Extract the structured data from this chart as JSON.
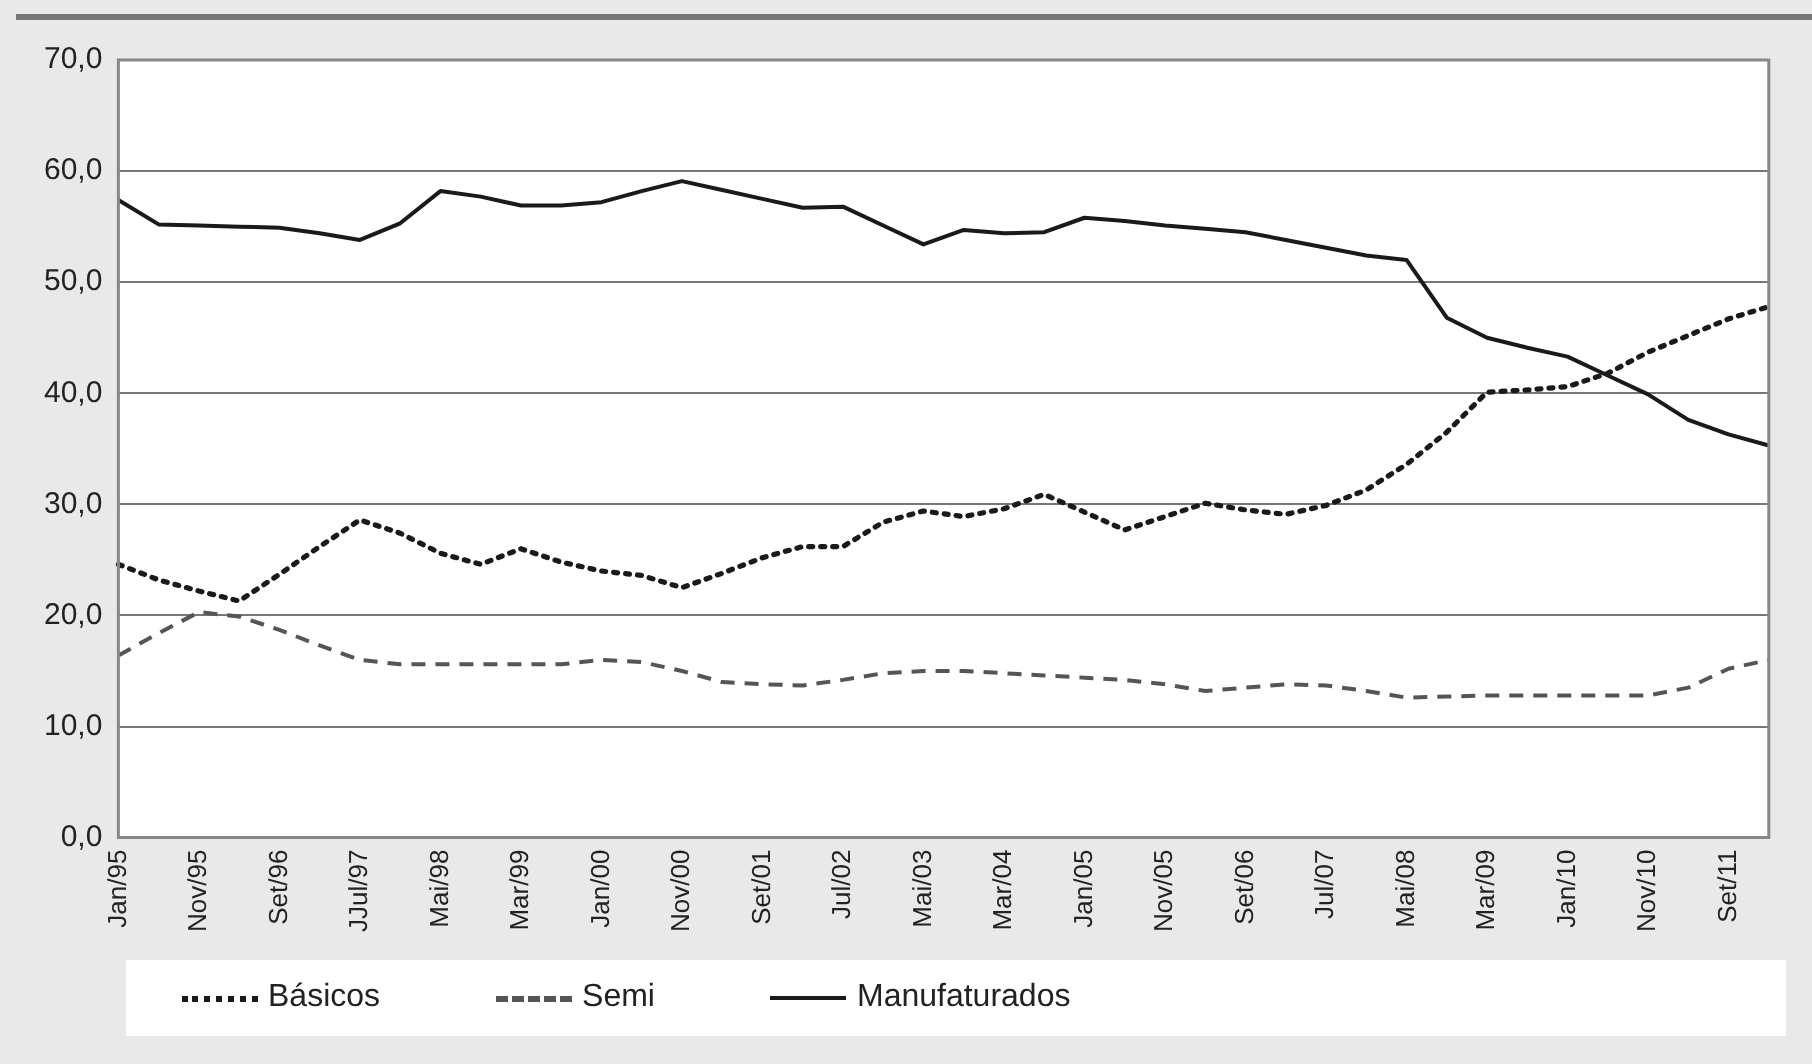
{
  "chart_data": {
    "type": "line",
    "categories": [
      "Jan/95",
      null,
      "Nov/95",
      null,
      "Set/96",
      null,
      "JJul/97",
      null,
      "Mai/98",
      null,
      "Mar/99",
      null,
      "Jan/00",
      null,
      "Nov/00",
      null,
      "Set/01",
      null,
      "Jul/02",
      null,
      "Mai/03",
      null,
      "Mar/04",
      null,
      "Jan/05",
      null,
      "Nov/05",
      null,
      "Set/06",
      null,
      "Jul/07",
      null,
      "Mai/08",
      null,
      "Mar/09",
      null,
      "Jan/10",
      null,
      "Nov/10",
      null,
      "Set/11",
      null
    ],
    "series": [
      {
        "name": "Básicos",
        "color": "#1a1a1a",
        "line_style": "dotted",
        "values": [
          24.6,
          23.2,
          22.2,
          21.3,
          23.7,
          26.2,
          28.6,
          27.4,
          25.6,
          24.6,
          26.0,
          24.8,
          24.0,
          23.6,
          22.5,
          23.8,
          25.2,
          26.2,
          26.2,
          28.4,
          29.4,
          28.9,
          29.6,
          30.9,
          29.3,
          27.7,
          28.9,
          30.1,
          29.5,
          29.1,
          29.9,
          31.3,
          33.6,
          36.5,
          40.1,
          40.3,
          40.6,
          41.8,
          43.7,
          45.2,
          46.7,
          47.8
        ]
      },
      {
        "name": "Semi",
        "color": "#555555",
        "line_style": "dashed",
        "values": [
          16.4,
          18.4,
          20.3,
          19.9,
          18.7,
          17.3,
          16.0,
          15.6,
          15.6,
          15.6,
          15.6,
          15.6,
          16.0,
          15.8,
          15.0,
          14.0,
          13.8,
          13.7,
          14.2,
          14.8,
          15.0,
          15.0,
          14.8,
          14.6,
          14.4,
          14.2,
          13.8,
          13.2,
          13.5,
          13.8,
          13.7,
          13.2,
          12.6,
          12.7,
          12.8,
          12.8,
          12.8,
          12.8,
          12.8,
          13.5,
          15.2,
          16.0
        ]
      },
      {
        "name": "Manufaturados",
        "color": "#1a1a1a",
        "line_style": "solid",
        "values": [
          57.4,
          55.2,
          55.1,
          55.0,
          54.9,
          54.4,
          53.8,
          55.3,
          58.2,
          57.7,
          56.9,
          56.9,
          57.2,
          58.2,
          59.1,
          58.3,
          57.5,
          56.7,
          56.8,
          55.1,
          53.4,
          54.7,
          54.4,
          54.5,
          55.8,
          55.5,
          55.1,
          54.8,
          54.5,
          53.8,
          53.1,
          52.4,
          52.0,
          46.8,
          45.0,
          44.1,
          43.3,
          41.6,
          39.9,
          37.6,
          36.3,
          35.3
        ]
      }
    ],
    "ylim": [
      0,
      70
    ],
    "yticks": [
      {
        "value": 0,
        "label": "0,0"
      },
      {
        "value": 10,
        "label": "10,0"
      },
      {
        "value": 20,
        "label": "20,0"
      },
      {
        "value": 30,
        "label": "30,0"
      },
      {
        "value": 40,
        "label": "40,0"
      },
      {
        "value": 50,
        "label": "50,0"
      },
      {
        "value": 60,
        "label": "60,0"
      },
      {
        "value": 70,
        "label": "70,0"
      }
    ],
    "grid": "y",
    "legend": "bottom",
    "marker": "none"
  }
}
